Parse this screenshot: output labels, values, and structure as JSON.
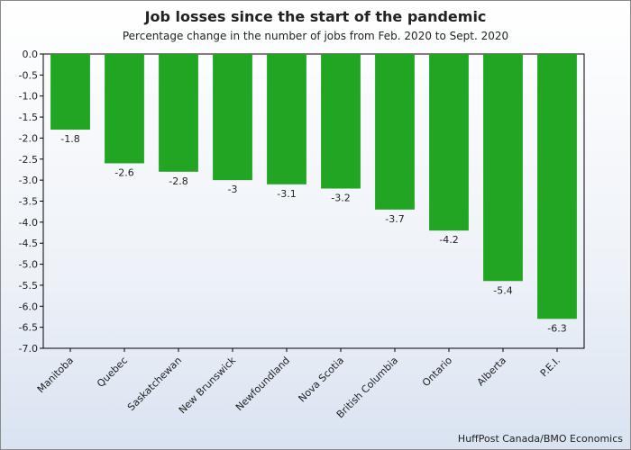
{
  "chart_data": {
    "type": "bar",
    "title": "Job losses since the start of the pandemic",
    "subtitle": "Percentage change in the number of jobs from Feb. 2020 to Sept. 2020",
    "source": "HuffPost Canada/BMO Economics",
    "categories": [
      "Manitoba",
      "Quebec",
      "Saskatchewan",
      "New Brunswick",
      "Newfoundland",
      "Nova Scotia",
      "British Columbia",
      "Ontario",
      "Alberta",
      "P.E.I."
    ],
    "values": [
      -1.8,
      -2.6,
      -2.8,
      -3,
      -3.1,
      -3.2,
      -3.7,
      -4.2,
      -5.4,
      -6.3
    ],
    "value_labels": [
      "-1.8",
      "-2.6",
      "-2.8",
      "-3",
      "-3.1",
      "-3.2",
      "-3.7",
      "-4.2",
      "-5.4",
      "-6.3"
    ],
    "y_ticks": [
      "0.0",
      "-0.5",
      "-1.0",
      "-1.5",
      "-2.0",
      "-2.5",
      "-3.0",
      "-3.5",
      "-4.0",
      "-4.5",
      "-5.0",
      "-5.5",
      "-6.0",
      "-6.5",
      "-7.0"
    ],
    "ylim": [
      -7,
      0
    ],
    "grid": false,
    "legend": "none",
    "bar_color": "#22a522"
  }
}
